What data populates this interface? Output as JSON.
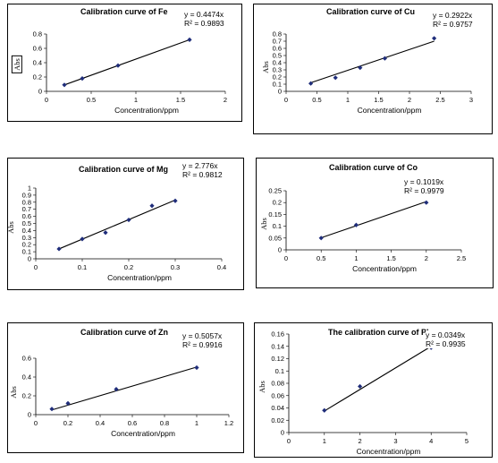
{
  "chart_data": [
    {
      "type": "scatter",
      "title": "Calibration curve of Fe",
      "equation": "y = 0.4474x",
      "r2": "R² = 0.9893",
      "xlabel": "Concentration/ppm",
      "ylabel": "Abs",
      "xlim": [
        0,
        2
      ],
      "ylim": [
        0,
        0.8
      ],
      "xticks": [
        0,
        0.5,
        1,
        1.5,
        2
      ],
      "yticks": [
        0,
        0.2,
        0.4,
        0.6,
        0.8
      ],
      "x": [
        0.2,
        0.4,
        0.8,
        1.6
      ],
      "y": [
        0.09,
        0.18,
        0.36,
        0.72
      ],
      "trendline": {
        "x": [
          0.2,
          1.6
        ],
        "y": [
          0.09,
          0.72
        ]
      }
    },
    {
      "type": "scatter",
      "title": "Calibration curve of Cu",
      "equation": "y = 0.2922x",
      "r2": "R² = 0.9757",
      "xlabel": "Concentration/ppm",
      "ylabel": "Abs",
      "xlim": [
        0,
        3
      ],
      "ylim": [
        0,
        0.8
      ],
      "xticks": [
        0,
        0.5,
        1,
        1.5,
        2,
        2.5,
        3
      ],
      "yticks": [
        0,
        0.1,
        0.2,
        0.3,
        0.4,
        0.5,
        0.6,
        0.7,
        0.8
      ],
      "x": [
        0.4,
        0.8,
        1.2,
        1.6,
        2.4
      ],
      "y": [
        0.11,
        0.19,
        0.33,
        0.46,
        0.74
      ],
      "trendline": {
        "x": [
          0.4,
          2.4
        ],
        "y": [
          0.12,
          0.7
        ]
      }
    },
    {
      "type": "scatter",
      "title": "Calibration curve of Mg",
      "equation": "y = 2.776x",
      "r2": "R² = 0.9812",
      "xlabel": "Concentration/ppm",
      "ylabel": "Abs",
      "xlim": [
        0,
        0.4
      ],
      "ylim": [
        0,
        1
      ],
      "xticks": [
        0,
        0.1,
        0.2,
        0.3,
        0.4
      ],
      "yticks": [
        0,
        0.1,
        0.2,
        0.3,
        0.4,
        0.5,
        0.6,
        0.7,
        0.8,
        0.9,
        1
      ],
      "x": [
        0.05,
        0.1,
        0.15,
        0.2,
        0.25,
        0.3
      ],
      "y": [
        0.14,
        0.28,
        0.37,
        0.55,
        0.75,
        0.82
      ],
      "trendline": {
        "x": [
          0.05,
          0.3
        ],
        "y": [
          0.14,
          0.83
        ]
      }
    },
    {
      "type": "scatter",
      "title": "Calibration curve of Co",
      "equation": "y = 0.1019x",
      "r2": "R² = 0.9979",
      "xlabel": "Concentration/ppm",
      "ylabel": "Abs",
      "xlim": [
        0,
        2.5
      ],
      "ylim": [
        0,
        0.25
      ],
      "xticks": [
        0,
        0.5,
        1,
        1.5,
        2,
        2.5
      ],
      "yticks": [
        0,
        0.05,
        0.1,
        0.15,
        0.2,
        0.25
      ],
      "x": [
        0.5,
        1,
        2
      ],
      "y": [
        0.05,
        0.105,
        0.2
      ],
      "trendline": {
        "x": [
          0.5,
          2
        ],
        "y": [
          0.051,
          0.204
        ]
      }
    },
    {
      "type": "scatter",
      "title": "Calibration curve of Zn",
      "equation": "y = 0.5057x",
      "r2": "R² = 0.9916",
      "xlabel": "Concentration/ppm",
      "ylabel": "Abs",
      "xlim": [
        0,
        1.2
      ],
      "ylim": [
        0,
        0.6
      ],
      "xticks": [
        0,
        0.2,
        0.4,
        0.6,
        0.8,
        1,
        1.2
      ],
      "yticks": [
        0,
        0.2,
        0.4,
        0.6
      ],
      "x": [
        0.1,
        0.2,
        0.5,
        1
      ],
      "y": [
        0.06,
        0.12,
        0.27,
        0.5
      ],
      "trendline": {
        "x": [
          0.1,
          1
        ],
        "y": [
          0.05,
          0.506
        ]
      }
    },
    {
      "type": "scatter",
      "title": "The calibration curve of Pb",
      "equation": "y = 0.0349x",
      "r2": "R² = 0.9935",
      "xlabel": "Concentration/ppm",
      "ylabel": "Abs",
      "xlim": [
        0,
        5
      ],
      "ylim": [
        0,
        0.16
      ],
      "xticks": [
        0,
        1,
        2,
        3,
        4,
        5
      ],
      "yticks": [
        0,
        0.02,
        0.04,
        0.06,
        0.08,
        0.1,
        0.12,
        0.14,
        0.16
      ],
      "x": [
        1,
        2,
        4
      ],
      "y": [
        0.036,
        0.075,
        0.138
      ],
      "trendline": {
        "x": [
          1,
          4
        ],
        "y": [
          0.035,
          0.14
        ]
      }
    }
  ]
}
